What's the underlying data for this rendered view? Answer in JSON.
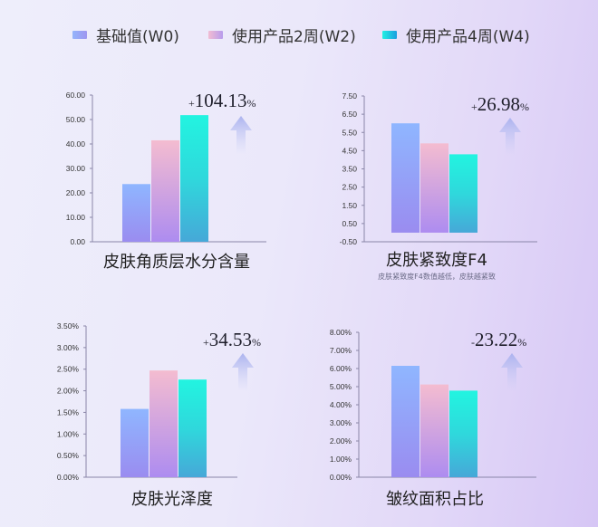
{
  "legend": [
    {
      "label": "基础值(W0)",
      "color": "#8fa8f8"
    },
    {
      "label": "使用产品2周(W2)",
      "color": "#d8aee0"
    },
    {
      "label": "使用产品4周(W4)",
      "color": "#1ad8e0"
    }
  ],
  "chart_data": [
    {
      "type": "bar",
      "title": "皮肤角质层水分含量",
      "subtitle": "",
      "categories": [
        "W0",
        "W2",
        "W4"
      ],
      "values": [
        23.6,
        41.5,
        51.8
      ],
      "ylim": [
        0,
        60
      ],
      "yticks": [
        "0.00",
        "10.00",
        "20.00",
        "30.00",
        "40.00",
        "50.00",
        "60.00"
      ],
      "change_sign": "+",
      "change_value": "104.13",
      "change_unit": "%"
    },
    {
      "type": "bar",
      "title": "皮肤紧致度F4",
      "subtitle": "皮肤紧致度F4数值越低，皮肤越紧致",
      "categories": [
        "W0",
        "W2",
        "W4"
      ],
      "values": [
        6.0,
        4.9,
        4.3
      ],
      "ylim": [
        -0.5,
        7.5
      ],
      "yticks": [
        "-0.50",
        "0.50",
        "1.50",
        "2.50",
        "3.50",
        "4.50",
        "5.50",
        "6.50",
        "7.50"
      ],
      "change_sign": "+",
      "change_value": "26.98",
      "change_unit": "%"
    },
    {
      "type": "bar",
      "title": "皮肤光泽度",
      "subtitle": "",
      "categories": [
        "W0",
        "W2",
        "W4"
      ],
      "values": [
        1.58,
        2.47,
        2.26
      ],
      "ylim": [
        0,
        3.5
      ],
      "yticks": [
        "0.00%",
        "0.50%",
        "1.00%",
        "1.50%",
        "2.00%",
        "2.50%",
        "3.00%",
        "3.50%"
      ],
      "change_sign": "+",
      "change_value": "34.53",
      "change_unit": "%"
    },
    {
      "type": "bar",
      "title": "皱纹面积占比",
      "subtitle": "",
      "categories": [
        "W0",
        "W2",
        "W4"
      ],
      "values": [
        6.15,
        5.12,
        4.78
      ],
      "ylim": [
        0,
        8
      ],
      "yticks": [
        "0.00%",
        "1.00%",
        "2.00%",
        "3.00%",
        "4.00%",
        "5.00%",
        "6.00%",
        "7.00%",
        "8.00%"
      ],
      "change_sign": "-",
      "change_value": "23.22",
      "change_unit": "%"
    }
  ]
}
